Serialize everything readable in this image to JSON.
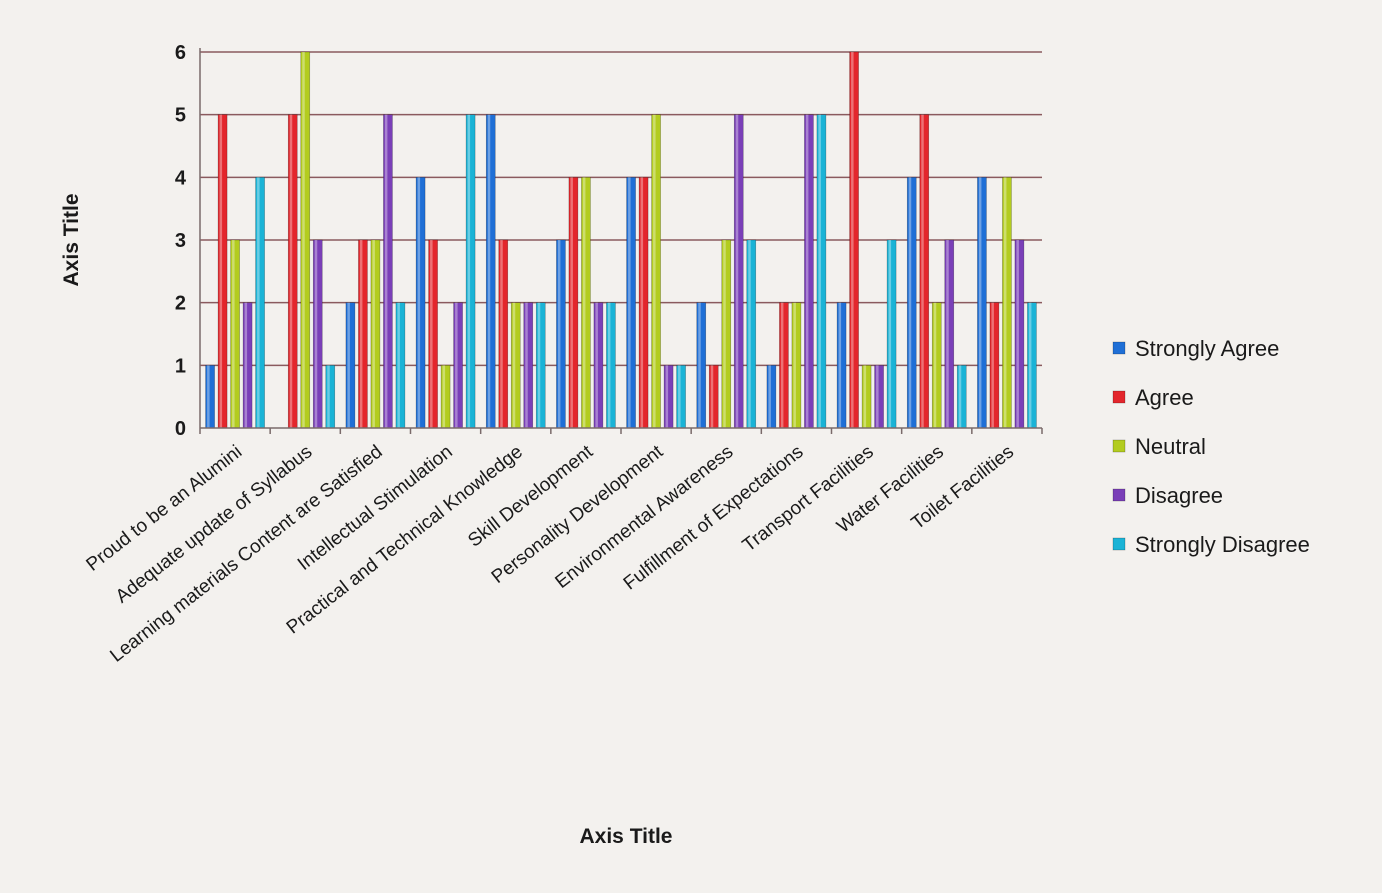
{
  "chart_data": {
    "type": "bar",
    "xlabel": "Axis Title",
    "ylabel": "Axis Title",
    "ylim": [
      0,
      6
    ],
    "yticks": [
      0,
      1,
      2,
      3,
      4,
      5,
      6
    ],
    "grid": true,
    "legend_position": "right",
    "categories": [
      "Proud to be an Alumini",
      "Adequate update of Syllabus",
      "Learning materials Content are  Satisfied",
      "Intellectual Stimulation",
      "Practical and Technical Knowledge",
      "Skill Development",
      "Personality Development",
      "Environmental Awareness",
      "Fulfillment of Expectations",
      "Transport Facilities",
      "Water Facilities",
      "Toilet Facilities"
    ],
    "series": [
      {
        "name": "Strongly Agree",
        "color": "#1f6fd6",
        "values": [
          1,
          0,
          2,
          4,
          5,
          3,
          4,
          2,
          1,
          2,
          4,
          4
        ]
      },
      {
        "name": "Agree",
        "color": "#e3262c",
        "values": [
          5,
          5,
          3,
          3,
          3,
          4,
          4,
          1,
          2,
          6,
          5,
          2
        ]
      },
      {
        "name": "Neutral",
        "color": "#b3cc1f",
        "values": [
          3,
          6,
          3,
          1,
          2,
          4,
          5,
          3,
          2,
          1,
          2,
          4
        ]
      },
      {
        "name": "Disagree",
        "color": "#7a3fb8",
        "values": [
          2,
          3,
          5,
          2,
          2,
          2,
          1,
          5,
          5,
          1,
          3,
          3
        ]
      },
      {
        "name": "Strongly Disagree",
        "color": "#1ab3d6",
        "values": [
          4,
          1,
          2,
          5,
          2,
          2,
          1,
          3,
          5,
          3,
          1,
          2
        ]
      }
    ]
  }
}
